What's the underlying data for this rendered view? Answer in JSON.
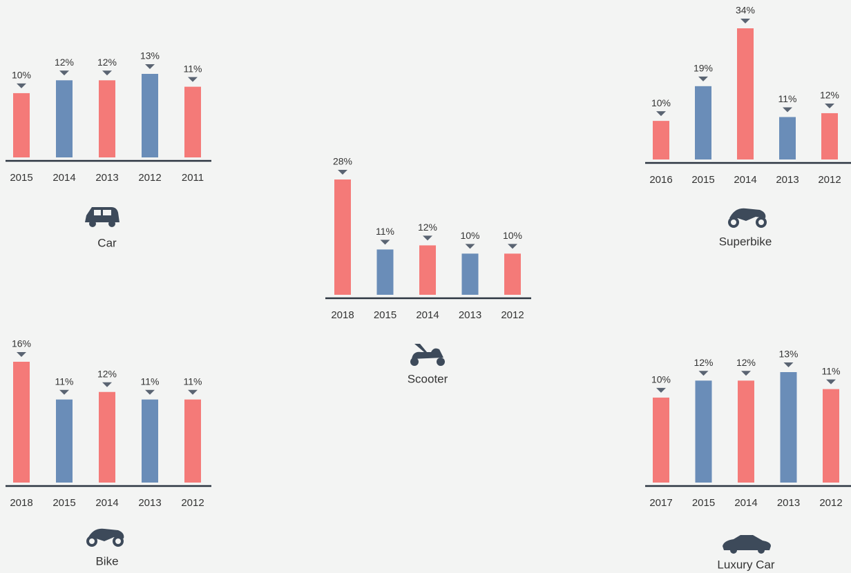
{
  "chart_data": [
    {
      "type": "bar",
      "title": "Car",
      "categories": [
        "2015",
        "2014",
        "2013",
        "2012",
        "2011"
      ],
      "values": [
        10,
        12,
        12,
        13,
        11
      ],
      "value_labels": [
        "10%",
        "12%",
        "12%",
        "13%",
        "11%"
      ],
      "colors": [
        "#f47a78",
        "#6a8db8",
        "#f47a78",
        "#6a8db8",
        "#f47a78"
      ]
    },
    {
      "type": "bar",
      "title": "Scooter",
      "categories": [
        "2018",
        "2015",
        "2014",
        "2013",
        "2012"
      ],
      "values": [
        28,
        11,
        12,
        10,
        10
      ],
      "value_labels": [
        "28%",
        "11%",
        "12%",
        "10%",
        "10%"
      ],
      "colors": [
        "#f47a78",
        "#6a8db8",
        "#f47a78",
        "#6a8db8",
        "#f47a78"
      ]
    },
    {
      "type": "bar",
      "title": "Superbike",
      "categories": [
        "2016",
        "2015",
        "2014",
        "2013",
        "2012"
      ],
      "values": [
        10,
        19,
        34,
        11,
        12
      ],
      "value_labels": [
        "10%",
        "19%",
        "34%",
        "11%",
        "12%"
      ],
      "colors": [
        "#f47a78",
        "#6a8db8",
        "#f47a78",
        "#6a8db8",
        "#f47a78"
      ]
    },
    {
      "type": "bar",
      "title": "Bike",
      "categories": [
        "2018",
        "2015",
        "2014",
        "2013",
        "2012"
      ],
      "values": [
        16,
        11,
        12,
        11,
        11
      ],
      "value_labels": [
        "16%",
        "11%",
        "12%",
        "11%",
        "11%"
      ],
      "colors": [
        "#f47a78",
        "#6a8db8",
        "#f47a78",
        "#6a8db8",
        "#f47a78"
      ]
    },
    {
      "type": "bar",
      "title": "Luxury Car",
      "categories": [
        "2017",
        "2015",
        "2014",
        "2013",
        "2012"
      ],
      "values": [
        10,
        12,
        12,
        13,
        11
      ],
      "value_labels": [
        "10%",
        "12%",
        "12%",
        "13%",
        "11%"
      ],
      "colors": [
        "#f47a78",
        "#6a8db8",
        "#f47a78",
        "#6a8db8",
        "#f47a78"
      ]
    }
  ]
}
